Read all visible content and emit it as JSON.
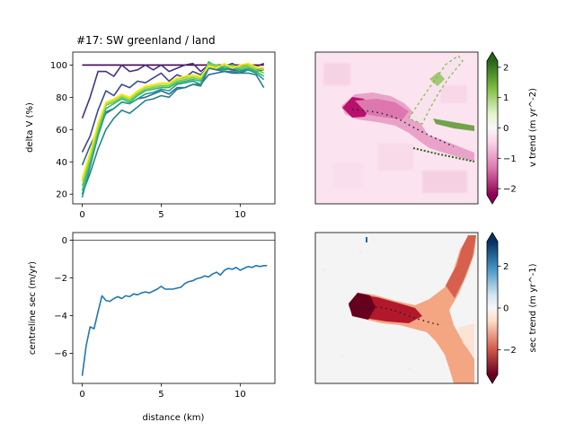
{
  "chart_data": [
    {
      "type": "line",
      "title": "#17: SW greenland / land",
      "xlabel": "",
      "ylabel": "delta V (%)",
      "xlim": [
        -0.6,
        12.2
      ],
      "ylim": [
        14,
        108
      ],
      "xticks": [
        0,
        5,
        10
      ],
      "yticks": [
        20,
        40,
        60,
        80,
        100
      ],
      "x": [
        0,
        0.5,
        1,
        1.5,
        2,
        2.5,
        3,
        3.5,
        4,
        4.5,
        5,
        5.5,
        6,
        6.5,
        7,
        7.5,
        8,
        8.5,
        9,
        9.5,
        10,
        10.5,
        11,
        11.5
      ],
      "series": [
        {
          "color": "#440154",
          "values": [
            100,
            100,
            100,
            100,
            100,
            100,
            100,
            100,
            100,
            100,
            100,
            100,
            100,
            100,
            100,
            100,
            100,
            100,
            100,
            100,
            100,
            100,
            100,
            100
          ]
        },
        {
          "color": "#46327e",
          "values": [
            67,
            80,
            96,
            96,
            93,
            100,
            96,
            97,
            100,
            97,
            100,
            96,
            98,
            100,
            101,
            96,
            100,
            99,
            99,
            101,
            98,
            100,
            99,
            101
          ]
        },
        {
          "color": "#3e4a89",
          "values": [
            46,
            56,
            72,
            84,
            81,
            88,
            86,
            90,
            89,
            92,
            95,
            90,
            94,
            92,
            96,
            94,
            99,
            97,
            98,
            97,
            96,
            98,
            97,
            98
          ]
        },
        {
          "color": "#31688e",
          "values": [
            38,
            50,
            60,
            70,
            73,
            77,
            76,
            79,
            80,
            82,
            84,
            82,
            86,
            86,
            88,
            88,
            94,
            95,
            96,
            95,
            95,
            97,
            96,
            97
          ]
        },
        {
          "color": "#26828e",
          "values": [
            20,
            33,
            48,
            60,
            67,
            72,
            70,
            74,
            78,
            79,
            81,
            80,
            85,
            86,
            88,
            87,
            98,
            97,
            96,
            96,
            95,
            95,
            94,
            86
          ]
        },
        {
          "color": "#1f9e89",
          "values": [
            18,
            37,
            56,
            71,
            73,
            77,
            76,
            79,
            82,
            83,
            85,
            84,
            88,
            89,
            90,
            88,
            101,
            98,
            97,
            98,
            96,
            97,
            95,
            91
          ]
        },
        {
          "color": "#35b779",
          "values": [
            22,
            40,
            58,
            73,
            76,
            79,
            77,
            81,
            84,
            85,
            86,
            86,
            89,
            90,
            91,
            90,
            102,
            99,
            98,
            99,
            97,
            98,
            96,
            93
          ]
        },
        {
          "color": "#6ece58",
          "values": [
            25,
            42,
            60,
            75,
            77,
            80,
            78,
            82,
            85,
            86,
            87,
            87,
            90,
            91,
            92,
            91,
            101,
            100,
            99,
            100,
            98,
            99,
            97,
            95
          ]
        },
        {
          "color": "#b5de2b",
          "values": [
            28,
            44,
            62,
            76,
            78,
            81,
            79,
            83,
            86,
            87,
            88,
            88,
            91,
            92,
            93,
            92,
            100,
            99,
            100,
            99,
            99,
            100,
            98,
            97
          ]
        },
        {
          "color": "#fde725",
          "values": [
            30,
            46,
            64,
            77,
            79,
            82,
            80,
            84,
            87,
            88,
            89,
            89,
            92,
            93,
            94,
            93,
            99,
            98,
            101,
            98,
            100,
            101,
            99,
            98
          ]
        }
      ]
    },
    {
      "type": "heatmap",
      "colorbar_label": "v trend (m yr^-2)",
      "colorbar_ticks": [
        "2",
        "1",
        "0",
        "−1",
        "−2"
      ],
      "colorbar_values": [
        2,
        1,
        0,
        -1,
        -2
      ],
      "colorbar_range": [
        -2.5,
        2.5
      ],
      "colormap": "PiYG"
    },
    {
      "type": "line",
      "xlabel": "distance (km)",
      "ylabel": "centreline sec (m/yr)",
      "xlim": [
        -0.6,
        12.2
      ],
      "ylim": [
        -7.6,
        0.4
      ],
      "xticks": [
        0,
        5,
        10
      ],
      "yticks": [
        0,
        -2,
        -4,
        -6
      ],
      "ytick_labels": [
        "0",
        "−2",
        "−4",
        "−6"
      ],
      "hline": 0,
      "series": [
        {
          "color": "#1f77b4",
          "x": [
            0,
            0.25,
            0.5,
            0.75,
            1,
            1.25,
            1.5,
            1.75,
            2,
            2.25,
            2.5,
            2.75,
            3,
            3.25,
            3.5,
            3.75,
            4,
            4.25,
            4.5,
            4.75,
            5,
            5.25,
            5.5,
            5.75,
            6,
            6.25,
            6.5,
            6.75,
            7,
            7.25,
            7.5,
            7.75,
            8,
            8.25,
            8.5,
            8.75,
            9,
            9.25,
            9.5,
            9.75,
            10,
            10.25,
            10.5,
            10.75,
            11,
            11.25,
            11.5,
            11.7
          ],
          "values": [
            -7.2,
            -5.6,
            -4.6,
            -4.7,
            -3.8,
            -2.95,
            -3.2,
            -3.25,
            -3.1,
            -3.0,
            -3.1,
            -2.95,
            -3.0,
            -2.85,
            -2.9,
            -2.8,
            -2.75,
            -2.8,
            -2.7,
            -2.6,
            -2.45,
            -2.6,
            -2.6,
            -2.6,
            -2.55,
            -2.5,
            -2.3,
            -2.2,
            -2.15,
            -2.05,
            -2.0,
            -1.9,
            -1.95,
            -1.8,
            -1.7,
            -1.85,
            -1.6,
            -1.5,
            -1.55,
            -1.45,
            -1.6,
            -1.5,
            -1.4,
            -1.45,
            -1.35,
            -1.4,
            -1.35,
            -1.35
          ]
        }
      ]
    },
    {
      "type": "heatmap",
      "colorbar_label": "sec trend (m yr^-1)",
      "colorbar_ticks": [
        "2",
        "0",
        "−2"
      ],
      "colorbar_values": [
        2,
        0,
        -2
      ],
      "colorbar_range": [
        -3.6,
        3.6
      ],
      "colormap": "RdBu"
    }
  ]
}
